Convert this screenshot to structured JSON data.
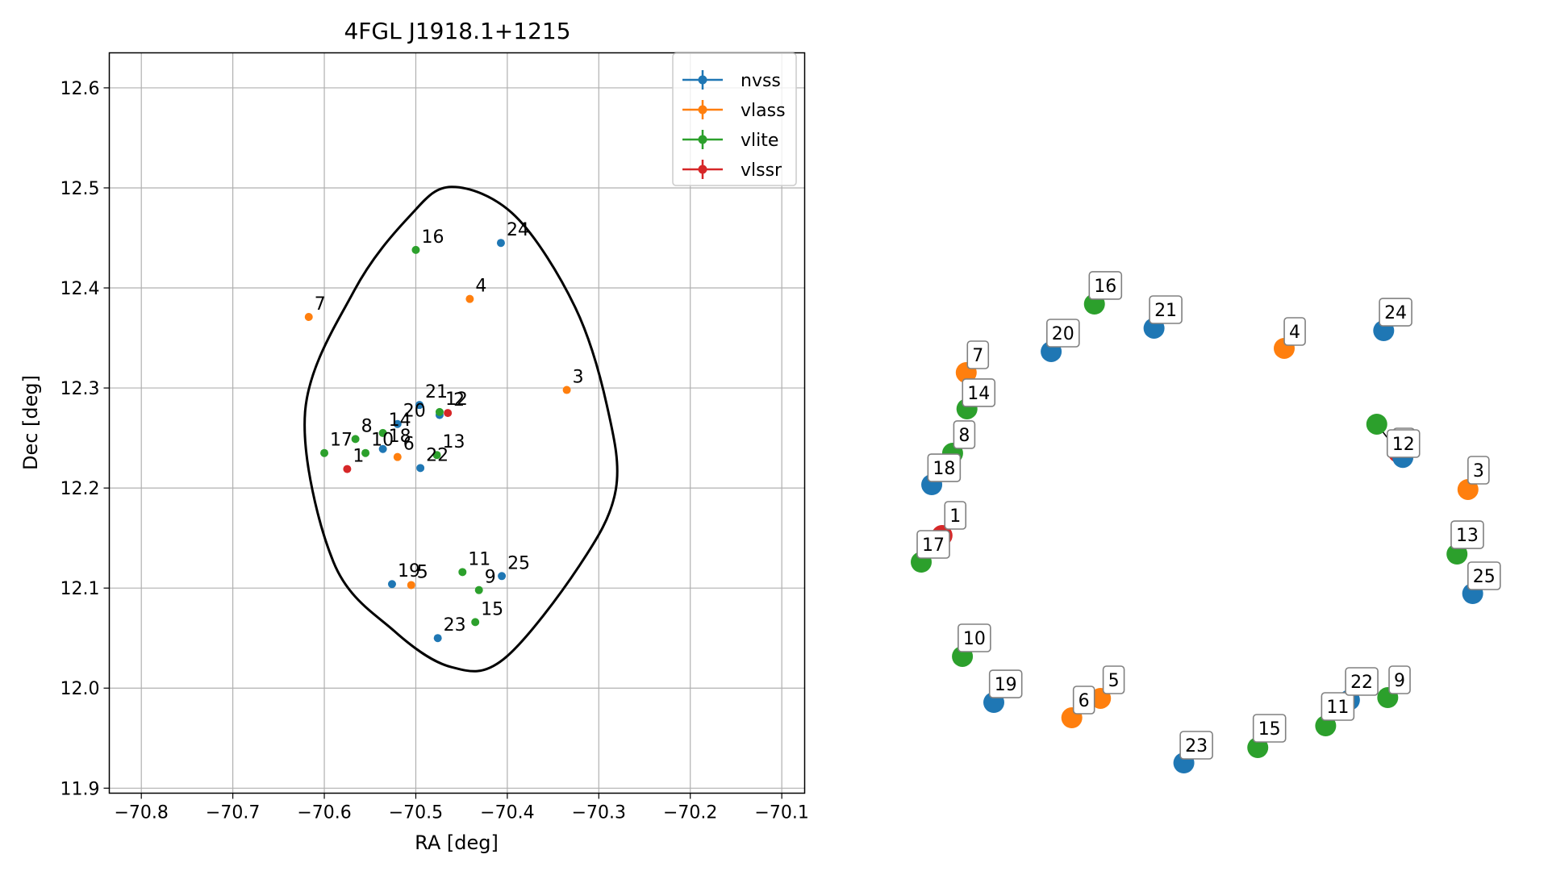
{
  "chart_data": [
    {
      "type": "scatter",
      "title": "4FGL J1918.1+1215",
      "xlabel": "RA [deg]",
      "ylabel": "Dec [deg]",
      "xlim": [
        -70.835,
        -70.075
      ],
      "ylim": [
        11.895,
        12.635
      ],
      "grid": true,
      "xticks": [
        -70.8,
        -70.7,
        -70.6,
        -70.5,
        -70.4,
        -70.3,
        -70.2,
        -70.1
      ],
      "xtick_labels": [
        "−70.8",
        "−70.7",
        "−70.6",
        "−70.5",
        "−70.4",
        "−70.3",
        "−70.2",
        "−70.1"
      ],
      "yticks": [
        11.9,
        12.0,
        12.1,
        12.2,
        12.3,
        12.4,
        12.5,
        12.6
      ],
      "ytick_labels": [
        "11.9",
        "12.0",
        "12.1",
        "12.2",
        "12.3",
        "12.4",
        "12.5",
        "12.6"
      ],
      "legend": {
        "placement": "top-right",
        "entries": [
          "nvss",
          "vlass",
          "vlite",
          "vlssr"
        ]
      },
      "colors": {
        "nvss": "#1f77b4",
        "vlass": "#ff7f0e",
        "vlite": "#2ca02c",
        "vlssr": "#d62728"
      },
      "ellipse": {
        "center": [
          -70.461,
          12.261
        ],
        "points": [
          [
            -70.461,
            12.501
          ],
          [
            -70.5075,
            12.471
          ],
          [
            -70.5675,
            12.397
          ],
          [
            -70.621,
            12.276
          ],
          [
            -70.59,
            12.126
          ],
          [
            -70.5235,
            12.057
          ],
          [
            -70.461,
            12.021
          ],
          [
            -70.404,
            12.029
          ],
          [
            -70.3215,
            12.122
          ],
          [
            -70.2815,
            12.198
          ],
          [
            -70.291,
            12.282
          ],
          [
            -70.326,
            12.381
          ],
          [
            -70.3915,
            12.472
          ]
        ]
      },
      "series": [
        {
          "name": "nvss",
          "points": [
            {
              "label": "18",
              "x": -70.536,
              "y": 12.239
            },
            {
              "label": "19",
              "x": -70.526,
              "y": 12.104
            },
            {
              "label": "20",
              "x": -70.52,
              "y": 12.264
            },
            {
              "label": "21",
              "x": -70.496,
              "y": 12.283
            },
            {
              "label": "22",
              "x": -70.495,
              "y": 12.22
            },
            {
              "label": "23",
              "x": -70.476,
              "y": 12.05
            },
            {
              "label": "24",
              "x": -70.407,
              "y": 12.445
            },
            {
              "label": "25",
              "x": -70.406,
              "y": 12.112
            },
            {
              "label": "",
              "x": -70.474,
              "y": 12.273
            }
          ]
        },
        {
          "name": "vlass",
          "points": [
            {
              "label": "3",
              "x": -70.335,
              "y": 12.298
            },
            {
              "label": "4",
              "x": -70.441,
              "y": 12.389
            },
            {
              "label": "5",
              "x": -70.505,
              "y": 12.103
            },
            {
              "label": "6",
              "x": -70.52,
              "y": 12.231
            },
            {
              "label": "7",
              "x": -70.617,
              "y": 12.371
            }
          ]
        },
        {
          "name": "vlite",
          "points": [
            {
              "label": "8",
              "x": -70.566,
              "y": 12.249
            },
            {
              "label": "9",
              "x": -70.431,
              "y": 12.098
            },
            {
              "label": "10",
              "x": -70.555,
              "y": 12.235
            },
            {
              "label": "11",
              "x": -70.449,
              "y": 12.116
            },
            {
              "label": "12",
              "x": -70.474,
              "y": 12.276
            },
            {
              "label": "13",
              "x": -70.477,
              "y": 12.233
            },
            {
              "label": "14",
              "x": -70.536,
              "y": 12.255
            },
            {
              "label": "15",
              "x": -70.435,
              "y": 12.066
            },
            {
              "label": "16",
              "x": -70.5,
              "y": 12.438
            },
            {
              "label": "17",
              "x": -70.6,
              "y": 12.235
            }
          ]
        },
        {
          "name": "vlssr",
          "points": [
            {
              "label": "1",
              "x": -70.575,
              "y": 12.219
            },
            {
              "label": "2",
              "x": -70.465,
              "y": 12.275
            }
          ]
        }
      ]
    },
    {
      "type": "scatter",
      "title": "",
      "grid": false,
      "axes": false,
      "note_colors_by_series": {
        "nvss": "#1f77b4",
        "vlass": "#ff7f0e",
        "vlite": "#2ca02c",
        "vlssr": "#d62728"
      },
      "points": [
        {
          "label": "1",
          "series": "vlssr",
          "x": 0.0744,
          "y": 0.5296,
          "tx": 0.0963,
          "ty": 0.5778
        },
        {
          "label": "2",
          "series": "vlssr",
          "x": 0.8289,
          "y": 0.7204,
          "tx": 0.8378,
          "ty": 0.7463
        },
        {
          "label": "3",
          "series": "vlass",
          "x": 0.9437,
          "y": 0.6352,
          "tx": 0.9611,
          "ty": 0.6815
        },
        {
          "label": "4",
          "series": "vlass",
          "x": 0.64,
          "y": 0.9593,
          "tx": 0.6574,
          "ty": 1.0
        },
        {
          "label": "5",
          "series": "vlass",
          "x": 0.3363,
          "y": 0.1556,
          "tx": 0.3581,
          "ty": 0.2
        },
        {
          "label": "6",
          "series": "vlass",
          "x": 0.2889,
          "y": 0.1111,
          "tx": 0.3089,
          "ty": 0.1537
        },
        {
          "label": "7",
          "series": "vlass",
          "x": 0.1144,
          "y": 0.9037,
          "tx": 0.1337,
          "ty": 0.9463
        },
        {
          "label": "8",
          "series": "vlite",
          "x": 0.0919,
          "y": 0.7185,
          "tx": 0.1112,
          "ty": 0.763
        },
        {
          "label": "9",
          "series": "vlite",
          "x": 0.8111,
          "y": 0.1574,
          "tx": 0.8307,
          "ty": 0.2
        },
        {
          "label": "10",
          "series": "vlite",
          "x": 0.1081,
          "y": 0.2519,
          "tx": 0.1278,
          "ty": 0.2963
        },
        {
          "label": "11",
          "series": "vlite",
          "x": 0.7085,
          "y": 0.0926,
          "tx": 0.7285,
          "ty": 0.1389
        },
        {
          "label": "12",
          "series": "vlite",
          "x": 0.793,
          "y": 0.7852,
          "tx": 0.837,
          "ty": 0.7426
        },
        {
          "label": "13",
          "series": "vlite",
          "x": 0.9256,
          "y": 0.487,
          "tx": 0.9426,
          "ty": 0.5333
        },
        {
          "label": "14",
          "series": "vlite",
          "x": 0.1156,
          "y": 0.8204,
          "tx": 0.135,
          "ty": 0.8593
        },
        {
          "label": "15",
          "series": "vlite",
          "x": 0.5963,
          "y": 0.0426,
          "tx": 0.6156,
          "ty": 0.0889
        },
        {
          "label": "16",
          "series": "vlite",
          "x": 0.3263,
          "y": 1.0611,
          "tx": 0.3444,
          "ty": 1.1056
        },
        {
          "label": "17",
          "series": "vlite",
          "x": 0.04,
          "y": 0.4685,
          "tx": 0.06,
          "ty": 0.5111
        },
        {
          "label": "18",
          "series": "nvss",
          "x": 0.0574,
          "y": 0.6463,
          "tx": 0.0778,
          "ty": 0.687
        },
        {
          "label": "19",
          "series": "nvss",
          "x": 0.16,
          "y": 0.1463,
          "tx": 0.1796,
          "ty": 0.1907
        },
        {
          "label": "20",
          "series": "nvss",
          "x": 0.2548,
          "y": 0.9519,
          "tx": 0.2744,
          "ty": 0.9963
        },
        {
          "label": "21",
          "series": "nvss",
          "x": 0.4248,
          "y": 1.0056,
          "tx": 0.4441,
          "ty": 1.05
        },
        {
          "label": "22",
          "series": "nvss",
          "x": 0.7478,
          "y": 0.1519,
          "tx": 0.7681,
          "ty": 0.1963
        },
        {
          "label": "23",
          "series": "nvss",
          "x": 0.4741,
          "y": 0.0074,
          "tx": 0.4948,
          "ty": 0.05
        },
        {
          "label": "24",
          "series": "nvss",
          "x": 0.8044,
          "y": 1.0,
          "tx": 0.8241,
          "ty": 1.0444
        },
        {
          "label": "25",
          "series": "nvss",
          "x": 0.9515,
          "y": 0.3963,
          "tx": 0.9704,
          "ty": 0.4389
        },
        {
          "label": "",
          "series": "nvss",
          "x": 0.8361,
          "y": 0.7089,
          "tx": 0.8361,
          "ty": 0.7089
        }
      ]
    }
  ]
}
